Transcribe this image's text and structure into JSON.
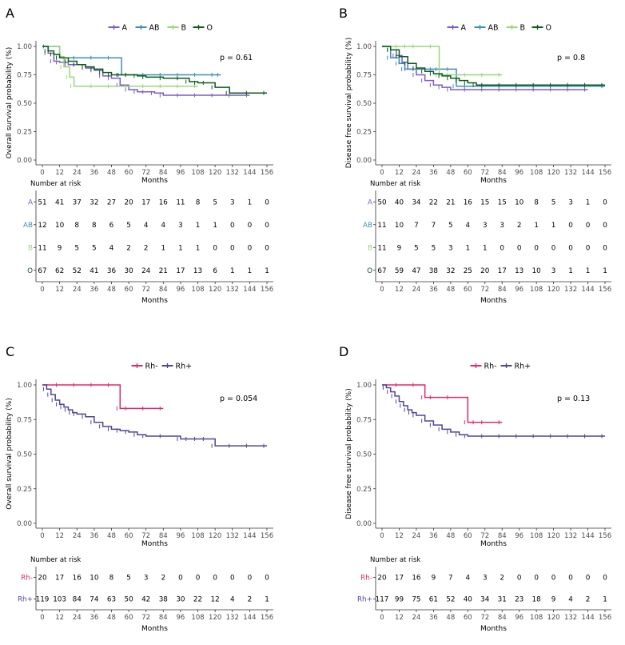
{
  "time_ticks": [
    "0",
    "12",
    "24",
    "36",
    "48",
    "60",
    "72",
    "84",
    "96",
    "108",
    "120",
    "132",
    "144",
    "156"
  ],
  "y_ticks": [
    "0.00",
    "0.25",
    "0.50",
    "0.75",
    "1.00"
  ],
  "xlabel": "Months",
  "risk_header": "Number at risk",
  "colors": {
    "A": "#7c5cc4",
    "AB": "#3d8fb5",
    "B": "#9bd47c",
    "O": "#0b5c1b",
    "Rh-": "#e0286a",
    "Rh+": "#4e4596"
  },
  "chart_data": [
    {
      "panel": "A",
      "type": "line",
      "ylabel": "Overall survival probability (%)",
      "pvalue": "p = 0.61",
      "xlim": [
        0,
        156
      ],
      "ylim": [
        0,
        1
      ],
      "legend": [
        "A",
        "AB",
        "B",
        "O"
      ],
      "series": [
        {
          "name": "A",
          "color": "#7c5cc4",
          "x": [
            0,
            4,
            8,
            12,
            18,
            24,
            30,
            36,
            42,
            48,
            54,
            60,
            66,
            72,
            78,
            84,
            96,
            108,
            120,
            132,
            144
          ],
          "y": [
            1,
            0.94,
            0.87,
            0.86,
            0.84,
            0.84,
            0.81,
            0.79,
            0.74,
            0.72,
            0.66,
            0.62,
            0.6,
            0.6,
            0.59,
            0.57,
            0.57,
            0.57,
            0.57,
            0.57,
            0.57
          ]
        },
        {
          "name": "AB",
          "color": "#3d8fb5",
          "x": [
            0,
            3,
            12,
            24,
            36,
            48,
            55,
            60,
            72,
            84,
            96,
            108,
            120,
            124
          ],
          "y": [
            1,
            1,
            0.9,
            0.9,
            0.9,
            0.9,
            0.75,
            0.75,
            0.75,
            0.75,
            0.75,
            0.75,
            0.75,
            0.75
          ]
        },
        {
          "name": "B",
          "color": "#9bd47c",
          "x": [
            0,
            12,
            15,
            19,
            22,
            36,
            48,
            60,
            72,
            84,
            96,
            108
          ],
          "y": [
            1,
            0.91,
            0.82,
            0.73,
            0.65,
            0.65,
            0.65,
            0.65,
            0.65,
            0.65,
            0.65,
            0.65
          ]
        },
        {
          "name": "O",
          "color": "#0b5c1b",
          "x": [
            0,
            4,
            8,
            12,
            18,
            24,
            30,
            36,
            42,
            48,
            54,
            60,
            66,
            72,
            84,
            96,
            102,
            108,
            114,
            120,
            130,
            144,
            156
          ],
          "y": [
            1,
            0.96,
            0.93,
            0.9,
            0.87,
            0.84,
            0.82,
            0.8,
            0.77,
            0.75,
            0.75,
            0.75,
            0.74,
            0.73,
            0.72,
            0.72,
            0.69,
            0.68,
            0.68,
            0.64,
            0.59,
            0.59,
            0.59
          ]
        }
      ],
      "risk": [
        {
          "group": "A",
          "values": [
            "51",
            "41",
            "37",
            "32",
            "27",
            "20",
            "17",
            "16",
            "11",
            "8",
            "5",
            "3",
            "1",
            "0"
          ]
        },
        {
          "group": "AB",
          "values": [
            "12",
            "10",
            "8",
            "8",
            "6",
            "5",
            "4",
            "4",
            "3",
            "1",
            "1",
            "0",
            "0",
            "0"
          ]
        },
        {
          "group": "B",
          "values": [
            "11",
            "9",
            "5",
            "5",
            "4",
            "2",
            "2",
            "1",
            "1",
            "1",
            "0",
            "0",
            "0",
            "0"
          ]
        },
        {
          "group": "O",
          "values": [
            "67",
            "62",
            "52",
            "41",
            "36",
            "30",
            "24",
            "21",
            "17",
            "13",
            "6",
            "1",
            "1",
            "1"
          ]
        }
      ]
    },
    {
      "panel": "B",
      "type": "line",
      "ylabel": "Disease free survival probability (%)",
      "pvalue": "p = 0.8",
      "xlim": [
        0,
        156
      ],
      "ylim": [
        0,
        1
      ],
      "legend": [
        "A",
        "AB",
        "B",
        "O"
      ],
      "series": [
        {
          "name": "A",
          "color": "#7c5cc4",
          "x": [
            0,
            6,
            10,
            14,
            18,
            24,
            30,
            36,
            42,
            48,
            60,
            72,
            84,
            96,
            108,
            120,
            132,
            144
          ],
          "y": [
            1,
            0.97,
            0.92,
            0.86,
            0.8,
            0.75,
            0.7,
            0.66,
            0.64,
            0.62,
            0.62,
            0.62,
            0.62,
            0.62,
            0.62,
            0.62,
            0.62,
            0.62
          ]
        },
        {
          "name": "AB",
          "color": "#3d8fb5",
          "x": [
            0,
            6,
            12,
            16,
            24,
            36,
            40,
            48,
            52,
            60,
            72,
            84,
            96,
            108,
            120,
            132,
            144,
            156
          ],
          "y": [
            1,
            0.9,
            0.85,
            0.8,
            0.8,
            0.8,
            0.8,
            0.8,
            0.65,
            0.65,
            0.65,
            0.65,
            0.65,
            0.65,
            0.65,
            0.65,
            0.65,
            0.65
          ]
        },
        {
          "name": "B",
          "color": "#9bd47c",
          "x": [
            0,
            12,
            18,
            24,
            36,
            40,
            48,
            60,
            72,
            84
          ],
          "y": [
            1,
            1,
            1,
            1,
            1,
            0.75,
            0.75,
            0.75,
            0.75,
            0.75
          ]
        },
        {
          "name": "O",
          "color": "#0b5c1b",
          "x": [
            0,
            6,
            12,
            18,
            24,
            30,
            36,
            42,
            48,
            54,
            60,
            66,
            72,
            84,
            96,
            108,
            120,
            132,
            144,
            156
          ],
          "y": [
            1,
            0.97,
            0.91,
            0.85,
            0.81,
            0.78,
            0.76,
            0.74,
            0.72,
            0.7,
            0.68,
            0.66,
            0.66,
            0.66,
            0.66,
            0.66,
            0.66,
            0.66,
            0.66,
            0.66
          ]
        }
      ],
      "risk": [
        {
          "group": "A",
          "values": [
            "50",
            "40",
            "34",
            "22",
            "21",
            "16",
            "15",
            "15",
            "10",
            "8",
            "5",
            "3",
            "1",
            "0"
          ]
        },
        {
          "group": "AB",
          "values": [
            "11",
            "10",
            "7",
            "7",
            "5",
            "4",
            "3",
            "3",
            "2",
            "1",
            "1",
            "0",
            "0",
            "0"
          ]
        },
        {
          "group": "B",
          "values": [
            "11",
            "9",
            "5",
            "5",
            "3",
            "1",
            "1",
            "0",
            "0",
            "0",
            "0",
            "0",
            "0",
            "0"
          ]
        },
        {
          "group": "O",
          "values": [
            "67",
            "59",
            "47",
            "38",
            "32",
            "25",
            "20",
            "17",
            "13",
            "10",
            "3",
            "1",
            "1",
            "1"
          ]
        }
      ]
    },
    {
      "panel": "C",
      "type": "line",
      "ylabel": "Overall survival probability (%)",
      "pvalue": "p = 0.054",
      "xlim": [
        0,
        156
      ],
      "ylim": [
        0,
        1
      ],
      "legend": [
        "Rh-",
        "Rh+"
      ],
      "series": [
        {
          "name": "Rh-",
          "color": "#e0286a",
          "x": [
            0,
            12,
            24,
            36,
            48,
            54,
            60,
            72,
            84
          ],
          "y": [
            1,
            1,
            1,
            1,
            1,
            0.83,
            0.83,
            0.83,
            0.83
          ]
        },
        {
          "name": "Rh+",
          "color": "#4e4596",
          "x": [
            0,
            3,
            6,
            9,
            12,
            15,
            18,
            21,
            24,
            30,
            36,
            42,
            48,
            54,
            60,
            66,
            72,
            84,
            96,
            102,
            108,
            114,
            120,
            132,
            144,
            156
          ],
          "y": [
            1,
            0.97,
            0.93,
            0.89,
            0.86,
            0.84,
            0.82,
            0.8,
            0.79,
            0.77,
            0.73,
            0.7,
            0.68,
            0.67,
            0.66,
            0.64,
            0.63,
            0.63,
            0.61,
            0.61,
            0.61,
            0.61,
            0.56,
            0.56,
            0.56,
            0.56
          ]
        }
      ],
      "risk": [
        {
          "group": "Rh-",
          "values": [
            "20",
            "17",
            "16",
            "10",
            "8",
            "5",
            "3",
            "2",
            "0",
            "0",
            "0",
            "0",
            "0",
            "0"
          ]
        },
        {
          "group": "Rh+",
          "values": [
            "119",
            "103",
            "84",
            "74",
            "63",
            "50",
            "42",
            "38",
            "30",
            "22",
            "12",
            "4",
            "2",
            "1"
          ]
        }
      ]
    },
    {
      "panel": "D",
      "type": "line",
      "ylabel": "Disease free survival probability (%)",
      "pvalue": "p = 0.13",
      "xlim": [
        0,
        156
      ],
      "ylim": [
        0,
        1
      ],
      "legend": [
        "Rh-",
        "Rh+"
      ],
      "series": [
        {
          "name": "Rh-",
          "color": "#e0286a",
          "x": [
            0,
            12,
            24,
            30,
            36,
            48,
            60,
            66,
            72,
            84
          ],
          "y": [
            1,
            1,
            1,
            0.91,
            0.91,
            0.91,
            0.73,
            0.73,
            0.73,
            0.73
          ]
        },
        {
          "name": "Rh+",
          "color": "#4e4596",
          "x": [
            0,
            3,
            6,
            9,
            12,
            15,
            18,
            21,
            24,
            30,
            36,
            42,
            48,
            54,
            60,
            72,
            84,
            96,
            108,
            120,
            132,
            144,
            156
          ],
          "y": [
            1,
            0.98,
            0.95,
            0.92,
            0.88,
            0.85,
            0.82,
            0.8,
            0.78,
            0.74,
            0.71,
            0.68,
            0.66,
            0.64,
            0.63,
            0.63,
            0.63,
            0.63,
            0.63,
            0.63,
            0.63,
            0.63,
            0.63
          ]
        }
      ],
      "risk": [
        {
          "group": "Rh-",
          "values": [
            "20",
            "17",
            "16",
            "9",
            "7",
            "4",
            "3",
            "2",
            "0",
            "0",
            "0",
            "0",
            "0",
            "0"
          ]
        },
        {
          "group": "Rh+",
          "values": [
            "117",
            "99",
            "75",
            "61",
            "52",
            "40",
            "34",
            "31",
            "23",
            "18",
            "9",
            "4",
            "2",
            "1"
          ]
        }
      ]
    }
  ]
}
